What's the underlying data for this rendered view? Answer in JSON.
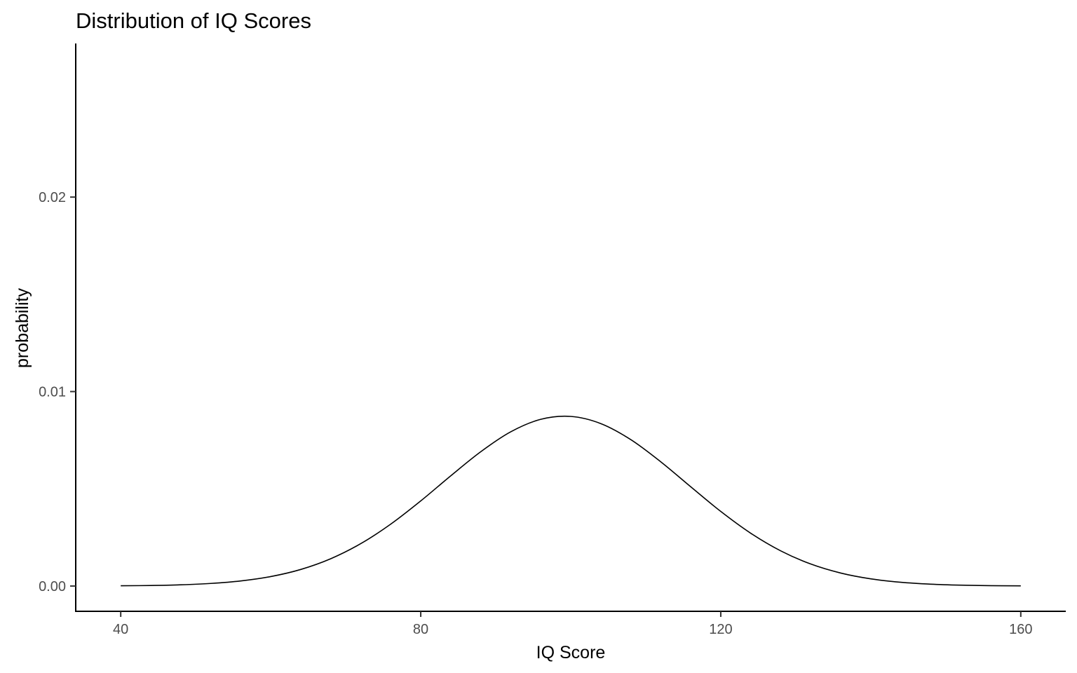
{
  "chart_data": {
    "type": "line",
    "title": "Distribution of IQ Scores",
    "xlabel": "IQ Score",
    "ylabel": "probability",
    "xlim": [
      34,
      166
    ],
    "ylim": [
      -0.0013,
      0.0279
    ],
    "x_ticks": [
      {
        "value": 40,
        "label": "40"
      },
      {
        "value": 80,
        "label": "80"
      },
      {
        "value": 120,
        "label": "120"
      },
      {
        "value": 160,
        "label": "160"
      }
    ],
    "y_ticks": [
      {
        "value": 0.0,
        "label": "0.00"
      },
      {
        "value": 0.01,
        "label": "0.01"
      },
      {
        "value": 0.02,
        "label": "0.02"
      }
    ],
    "grid": false,
    "legend": "none",
    "series": [
      {
        "x": [
          40,
          44,
          48,
          52,
          56,
          60,
          64,
          68,
          72,
          76,
          80,
          84,
          88,
          92,
          96,
          100,
          104,
          108,
          112,
          116,
          120,
          124,
          128,
          132,
          136,
          140,
          144,
          148,
          152,
          156,
          160
        ],
        "y": [
          1.2e-05,
          2.8e-05,
          6.3e-05,
          0.000133,
          0.000262,
          0.000487,
          0.000852,
          0.001404,
          0.002179,
          0.003183,
          0.004377,
          0.005668,
          0.006906,
          0.00793,
          0.008572,
          0.008722,
          0.008354,
          0.00753,
          0.006388,
          0.005103,
          0.003836,
          0.002714,
          0.001807,
          0.001131,
          0.000667,
          0.000369,
          0.000193,
          9.5e-05,
          4.4e-05,
          1.9e-05,
          8e-06
        ]
      }
    ]
  }
}
